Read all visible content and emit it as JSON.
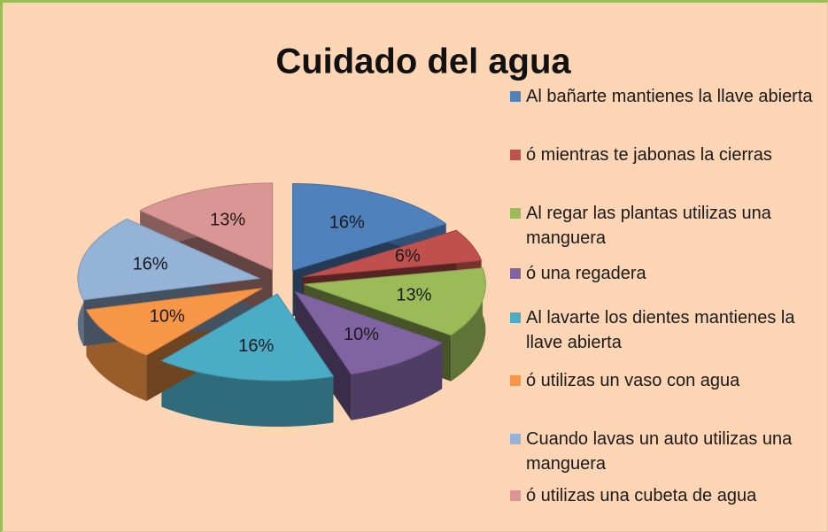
{
  "chart_data": {
    "type": "pie",
    "title": "Cuidado del agua",
    "categories": [
      "Al bañarte mantienes la llave abierta",
      "ó mientras te jabonas la cierras",
      "Al regar las plantas utilizas una manguera",
      "ó una regadera",
      "Al lavarte los dientes mantienes la llave abierta",
      "ó utilizas un vaso con agua",
      "Cuando lavas un auto utilizas una manguera",
      "ó  utilizas una cubeta de agua"
    ],
    "values": [
      16,
      6,
      13,
      10,
      16,
      10,
      16,
      13
    ],
    "value_labels": [
      "16%",
      "6%",
      "13%",
      "10%",
      "16%",
      "10%",
      "16%",
      "13%"
    ],
    "colors": [
      "#4f81bd",
      "#c0504d",
      "#9bbb59",
      "#8064a2",
      "#4bacc6",
      "#f79646",
      "#95b3d7",
      "#d99694"
    ],
    "legend": "right"
  }
}
